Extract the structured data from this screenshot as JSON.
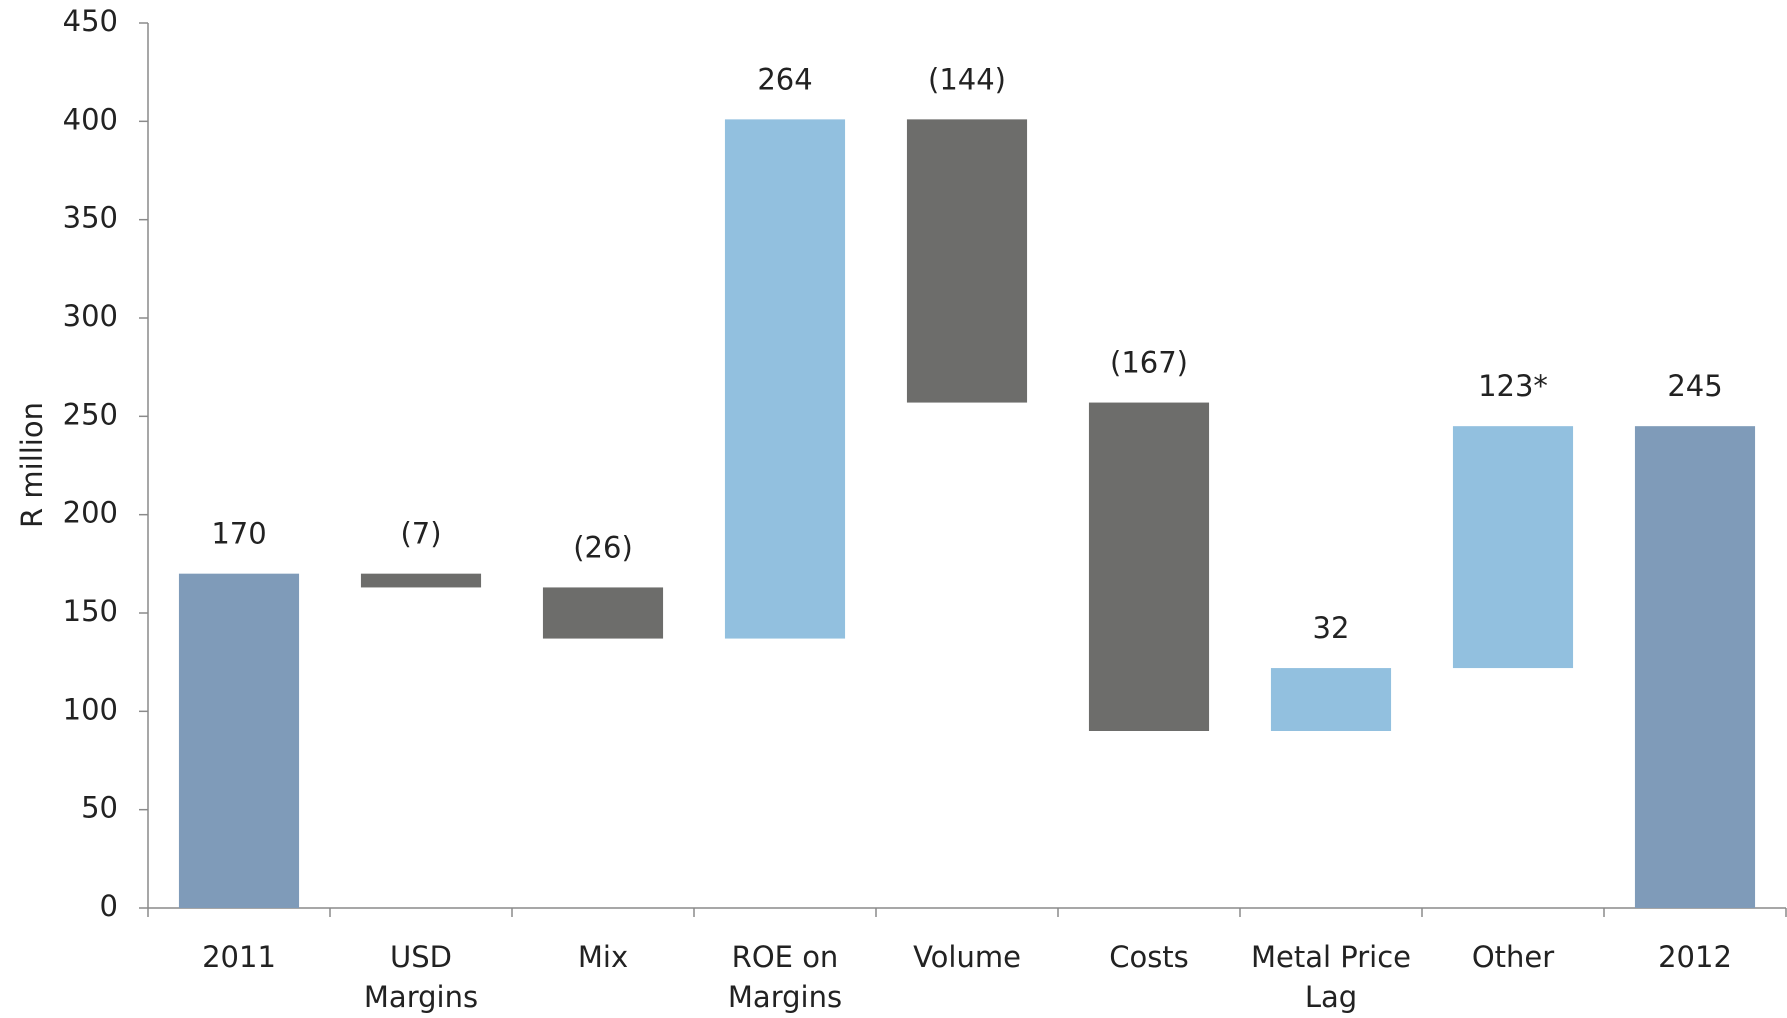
{
  "chart_data": {
    "type": "waterfall",
    "y_axis_label": "R million",
    "categories": [
      "2011",
      "USD\nMargins",
      "Mix",
      "ROE on\nMargins",
      "Volume",
      "Costs",
      "Metal Price\nLag",
      "Other",
      "2012"
    ],
    "values": [
      170,
      -7,
      -26,
      264,
      -144,
      -167,
      32,
      123,
      245
    ],
    "value_labels": [
      "170",
      "(7)",
      "(26)",
      "264",
      "(144)",
      "(167)",
      "32",
      "123*",
      "245"
    ],
    "is_total": [
      true,
      false,
      false,
      false,
      false,
      false,
      false,
      false,
      true
    ],
    "total_color": "#7f9bb9",
    "increase_color": "#92c0df",
    "decrease_color": "#6d6d6b",
    "ylim": [
      0,
      450
    ],
    "yticks": [
      0,
      50,
      100,
      150,
      200,
      250,
      300,
      350,
      400,
      450
    ],
    "grid": false
  }
}
